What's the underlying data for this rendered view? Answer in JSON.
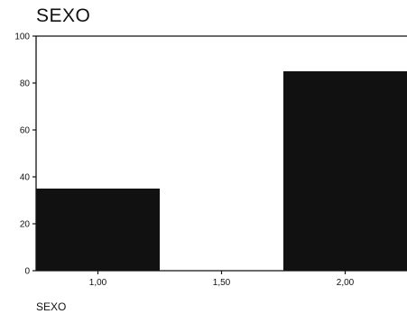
{
  "chart_data": {
    "type": "bar",
    "title": "SEXO",
    "xlabel": "SEXO",
    "ylabel": "",
    "x": [
      1.0,
      2.0
    ],
    "values": [
      35,
      85
    ],
    "bar_width": 0.5,
    "xlim": [
      0.75,
      2.25
    ],
    "ylim": [
      0,
      100
    ],
    "yticks": [
      0,
      20,
      40,
      60,
      80,
      100
    ],
    "yticklabels": [
      "0",
      "20",
      "40",
      "60",
      "80",
      "100"
    ],
    "xticks": [
      1.0,
      1.5,
      2.0
    ],
    "xticklabels": [
      "1,00",
      "1,50",
      "2,00"
    ],
    "bar_color": "#111111",
    "grid": false,
    "legend": "none"
  }
}
